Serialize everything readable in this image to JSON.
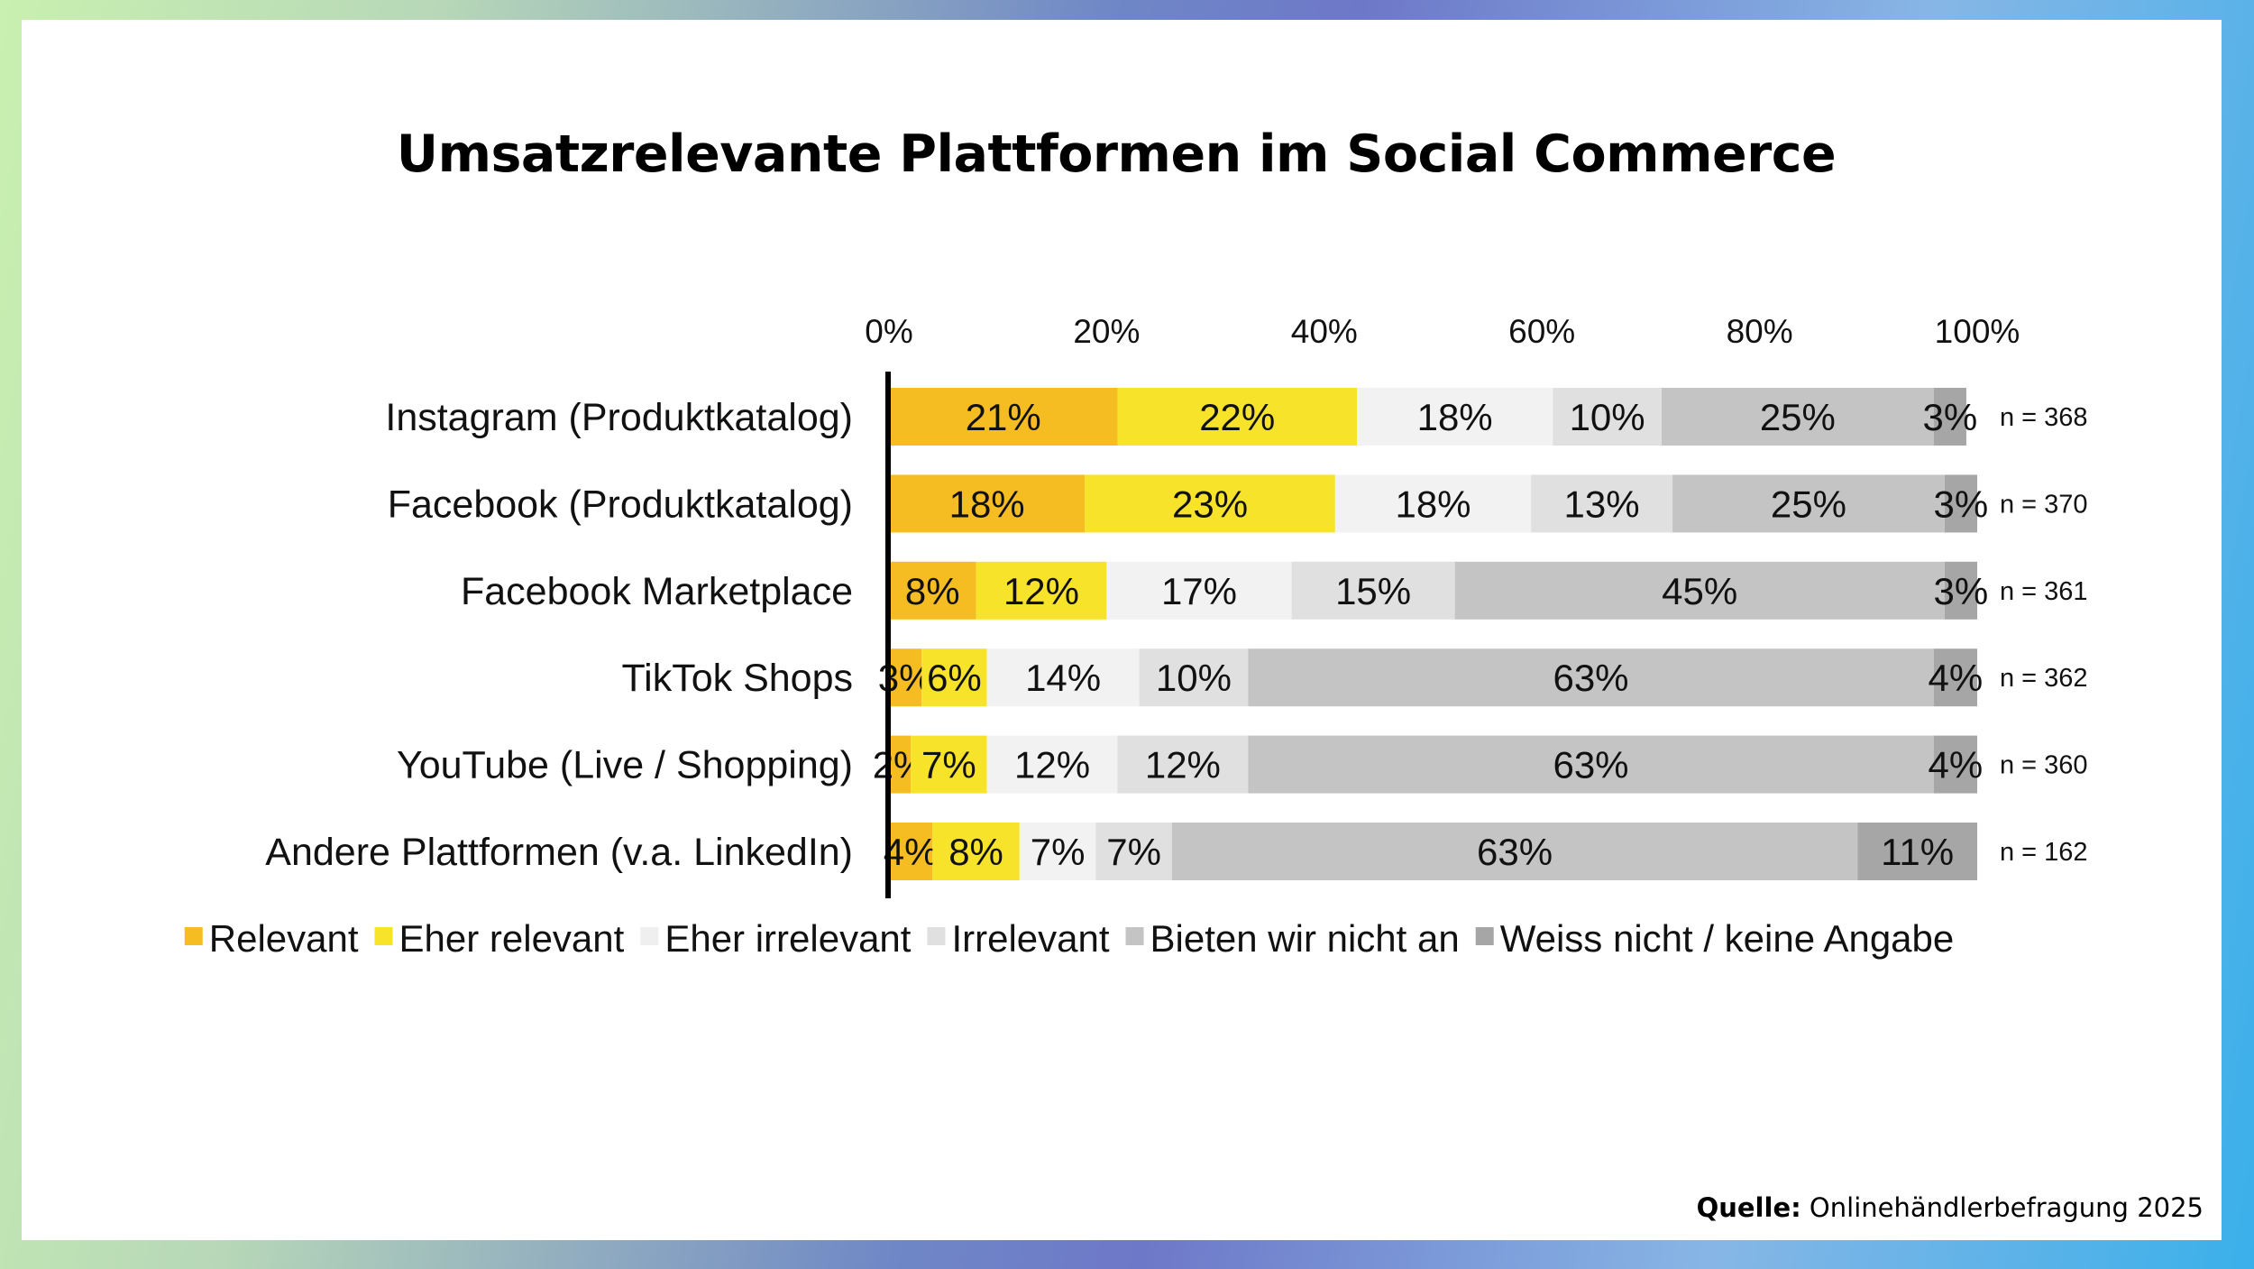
{
  "title": "Umsatzrelevante Plattformen im Social Commerce",
  "source": {
    "label": "Quelle:",
    "text": " Onlinehändlerbefragung 2025"
  },
  "chart_data": {
    "type": "bar",
    "orientation": "horizontal-stacked-100",
    "categories": [
      "Instagram (Produktkatalog)",
      "Facebook (Produktkatalog)",
      "Facebook Marketplace",
      "TikTok Shops",
      "YouTube (Live / Shopping)",
      "Andere Plattformen (v.a. LinkedIn)"
    ],
    "n_labels": [
      "n = 368",
      "n = 370",
      "n = 361",
      "n = 362",
      "n = 360",
      "n = 162"
    ],
    "series": [
      {
        "name": "Relevant",
        "color": "#f5bd22",
        "values": [
          21,
          18,
          8,
          3,
          2,
          4
        ]
      },
      {
        "name": "Eher relevant",
        "color": "#f7e32a",
        "values": [
          22,
          23,
          12,
          6,
          7,
          8
        ]
      },
      {
        "name": "Eher irrelevant",
        "color": "#f2f2f2",
        "values": [
          18,
          18,
          17,
          14,
          12,
          7
        ]
      },
      {
        "name": "Irrelevant",
        "color": "#e0e0e0",
        "values": [
          10,
          13,
          15,
          10,
          12,
          7
        ]
      },
      {
        "name": "Bieten wir nicht an",
        "color": "#c4c4c4",
        "values": [
          25,
          25,
          45,
          63,
          63,
          63
        ]
      },
      {
        "name": "Weiss nicht / keine Angabe",
        "color": "#a6a6a6",
        "values": [
          3,
          3,
          3,
          4,
          4,
          11
        ]
      }
    ],
    "x_ticks": [
      "0%",
      "20%",
      "40%",
      "60%",
      "80%",
      "100%"
    ],
    "xlim": [
      0,
      100
    ],
    "legend_position": "bottom"
  }
}
